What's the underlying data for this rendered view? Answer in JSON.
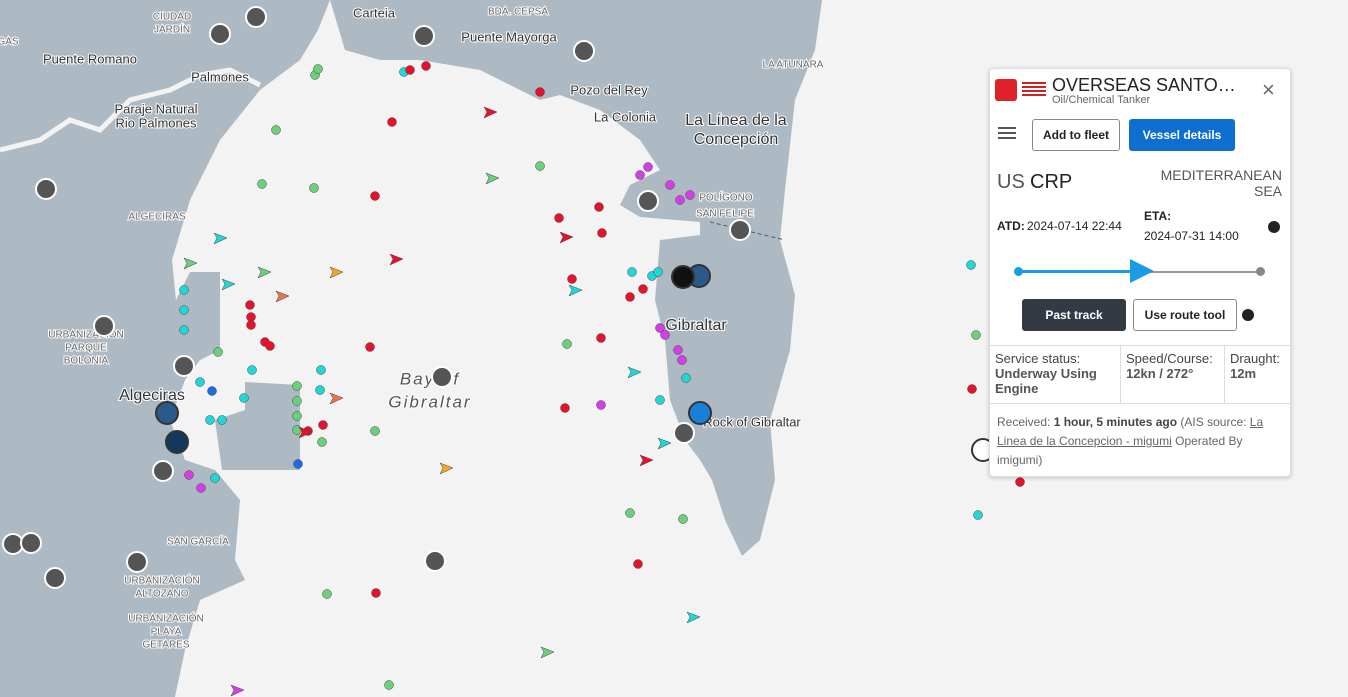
{
  "map": {
    "labels": [
      "CIUDAD",
      "JARDÍN",
      "Carteia",
      "BDA. CEPSA",
      "Puente Mayorga",
      "GAS",
      "Puente Romano",
      "Palmones",
      "Pozo del Rey",
      "LA ATUNARA",
      "La Colonia",
      "La Línea de la",
      "Concepción",
      "Paraje Natural",
      "Rio Palmones",
      "POLÍGONO",
      "SAN FELIPE",
      "ALGECIRAS",
      "URBANIZACIÓN",
      "PARQUE",
      "BOLONIA",
      "Algeciras",
      "Gibraltar",
      "Bay of",
      "Gibraltar",
      "Rock of Gibraltar",
      "SAN GARCÍA",
      "URBANIZACIÓN",
      "ALTOZANO",
      "URBANIZACIÓN",
      "PLAYA",
      "GETARES"
    ]
  },
  "vessel_panel": {
    "name": "OVERSEAS SANTO…",
    "type": "Oil/Chemical Tanker",
    "add_fleet": "Add to fleet",
    "details": "Vessel details",
    "flag_code": "US",
    "destination_code": "CRP",
    "destination": "MEDITERRANEAN SEA",
    "atd_label": "ATD:",
    "atd": "2024-07-14 22:44",
    "eta_label": "ETA:",
    "eta": "2024-07-31 14:00",
    "track_button": "Past track",
    "route_button": "Use route tool",
    "status": {
      "label": "Service status:",
      "value": "Underway Using Engine"
    },
    "speed": {
      "label": "Speed/Course:",
      "value": "12kn / 272°"
    },
    "draught": {
      "label": "Draught:",
      "value": "12m"
    },
    "received": {
      "label": "Received:",
      "age": "1 hour, 5 minutes ago",
      "source_prefix": "(AIS source:",
      "source_link": "La Linea de la Concepcion - migumi",
      "suffix": "Operated By imigumi)"
    }
  }
}
